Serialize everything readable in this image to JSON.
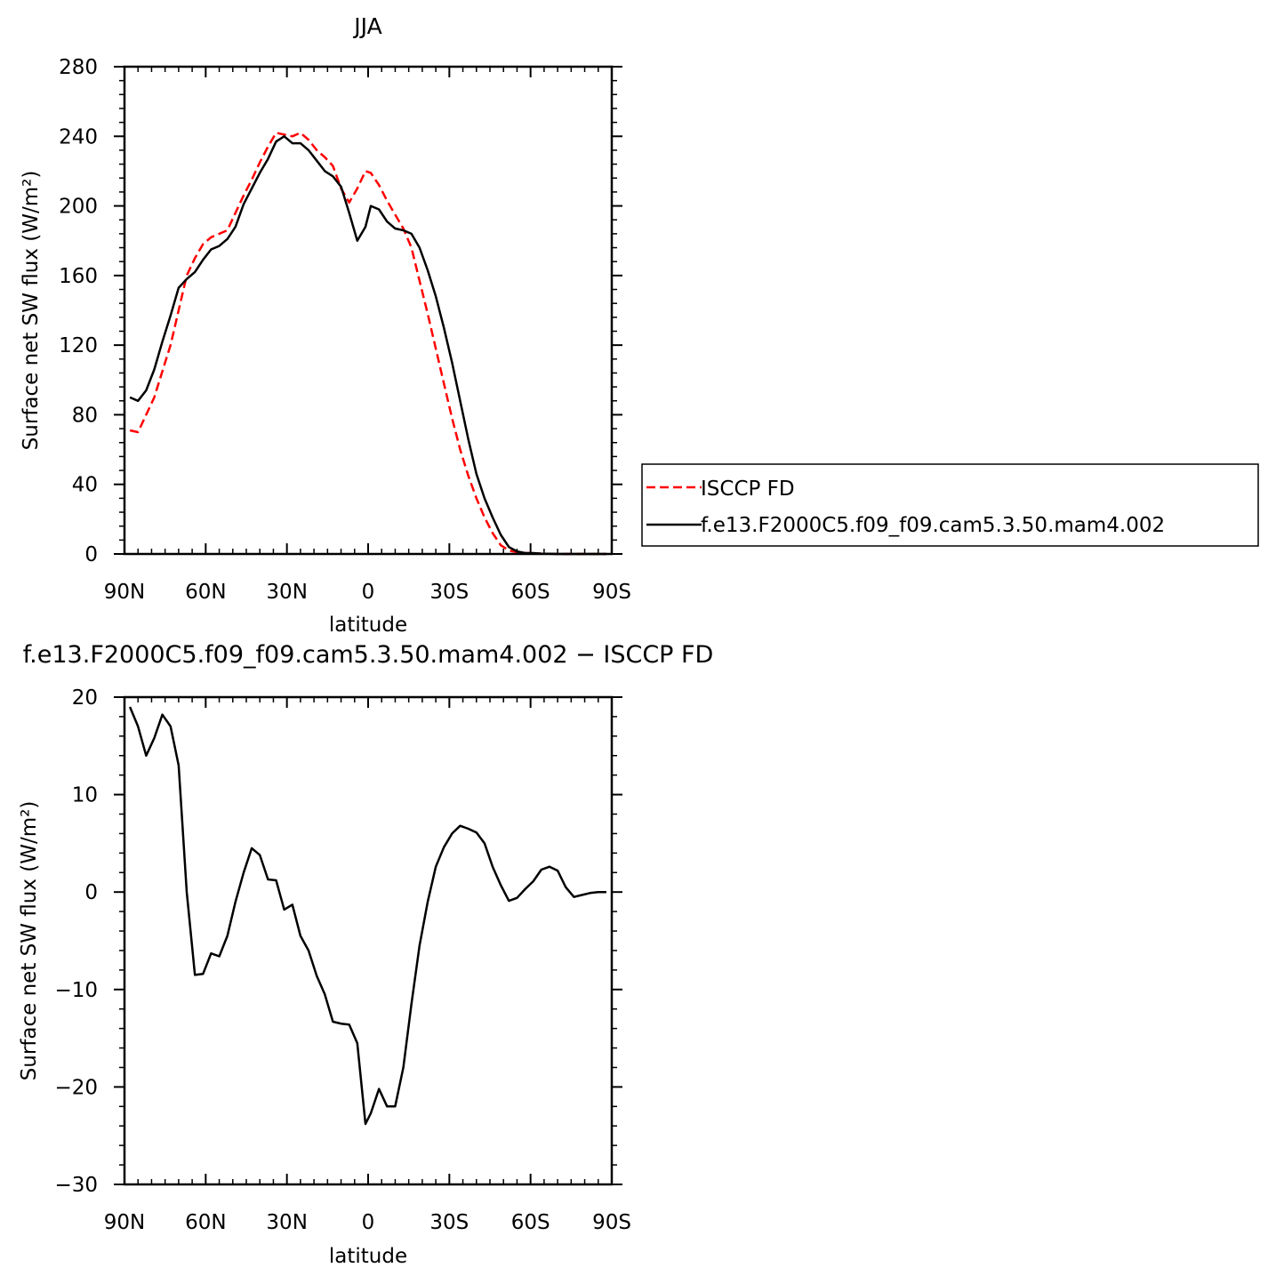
{
  "chart_data": [
    {
      "type": "line",
      "title": "JJA",
      "xlabel": "latitude",
      "ylabel": "Surface net SW flux (W/m²)",
      "xlim": [
        90,
        -90
      ],
      "ylim": [
        0,
        280
      ],
      "xticks": [
        {
          "value": 90,
          "label": "90N"
        },
        {
          "value": 60,
          "label": "60N"
        },
        {
          "value": 30,
          "label": "30N"
        },
        {
          "value": 0,
          "label": "0"
        },
        {
          "value": -30,
          "label": "30S"
        },
        {
          "value": -60,
          "label": "60S"
        },
        {
          "value": -90,
          "label": "90S"
        }
      ],
      "yticks": [
        0,
        40,
        80,
        120,
        160,
        200,
        240,
        280
      ],
      "legend": {
        "placement": "right"
      },
      "series": [
        {
          "name": "ISCCP FD",
          "color": "#ff0000",
          "dash": "dashed",
          "x": [
            88,
            85,
            82,
            79,
            76,
            73,
            70,
            67,
            64,
            61,
            58,
            55,
            52,
            49,
            46,
            43,
            40,
            37,
            34,
            31,
            28,
            25,
            22,
            19,
            16,
            13,
            10,
            7,
            4,
            1,
            -1,
            -4,
            -7,
            -10,
            -13,
            -16,
            -19,
            -22,
            -25,
            -28,
            -31,
            -34,
            -37,
            -40,
            -43,
            -46,
            -49,
            -52,
            -55,
            -58,
            -61,
            -64,
            -67,
            -70,
            -73,
            -76,
            -79,
            -82,
            -85,
            -88
          ],
          "y": [
            71,
            70,
            80,
            90,
            105,
            120,
            140,
            160,
            170,
            178,
            182,
            184,
            186,
            196,
            206,
            215,
            225,
            234,
            242,
            241,
            240,
            242,
            238,
            232,
            228,
            223,
            210,
            202,
            210,
            220,
            219,
            212,
            203,
            195,
            187,
            176,
            157,
            138,
            118,
            98,
            78,
            60,
            45,
            32,
            21,
            12,
            5,
            2,
            1,
            0.5,
            0.5,
            0.2,
            0.1,
            0,
            0,
            0,
            0,
            0,
            0,
            0
          ]
        },
        {
          "name": "f.e13.F2000C5.f09_f09.cam5.3.50.mam4.002",
          "color": "#000000",
          "dash": "solid",
          "x": [
            88,
            85,
            82,
            79,
            76,
            73,
            70,
            67,
            64,
            61,
            58,
            55,
            52,
            49,
            46,
            43,
            40,
            37,
            34,
            31,
            28,
            25,
            22,
            19,
            16,
            13,
            10,
            7,
            4,
            1,
            -1,
            -4,
            -7,
            -10,
            -13,
            -16,
            -19,
            -22,
            -25,
            -28,
            -31,
            -34,
            -37,
            -40,
            -43,
            -46,
            -49,
            -52,
            -55,
            -58,
            -61,
            -64,
            -67,
            -70,
            -73,
            -76,
            -79,
            -82,
            -85,
            -88
          ],
          "y": [
            90,
            88,
            94,
            106,
            122,
            137,
            153,
            158,
            162,
            169,
            175,
            177,
            181,
            188,
            201,
            210,
            219,
            227,
            237,
            240,
            236,
            236,
            232,
            226,
            220,
            217,
            211,
            196,
            180,
            188,
            200,
            198,
            191,
            187,
            186,
            184,
            176,
            163,
            148,
            130,
            110,
            88,
            66,
            46,
            32,
            21,
            11,
            4,
            1.5,
            0.5,
            0.5,
            0.2,
            0.1,
            0,
            0,
            0,
            0,
            0,
            0,
            0
          ]
        }
      ]
    },
    {
      "type": "line",
      "title": "f.e13.F2000C5.f09_f09.cam5.3.50.mam4.002 − ISCCP FD",
      "xlabel": "latitude",
      "ylabel": "Surface net SW flux (W/m²)",
      "xlim": [
        90,
        -90
      ],
      "ylim": [
        -30,
        20
      ],
      "xticks": [
        {
          "value": 90,
          "label": "90N"
        },
        {
          "value": 60,
          "label": "60N"
        },
        {
          "value": 30,
          "label": "30N"
        },
        {
          "value": 0,
          "label": "0"
        },
        {
          "value": -30,
          "label": "30S"
        },
        {
          "value": -60,
          "label": "60S"
        },
        {
          "value": -90,
          "label": "90S"
        }
      ],
      "yticks": [
        -30,
        -20,
        -10,
        0,
        10,
        20
      ],
      "series": [
        {
          "color": "#000000",
          "dash": "solid",
          "x": [
            88,
            85,
            82,
            79,
            76,
            73,
            70,
            67,
            64,
            61,
            58,
            55,
            52,
            49,
            46,
            43,
            40,
            37,
            34,
            31,
            28,
            25,
            22,
            19,
            16,
            13,
            10,
            7,
            4,
            1,
            -1,
            -4,
            -7,
            -10,
            -13,
            -16,
            -19,
            -22,
            -25,
            -28,
            -31,
            -34,
            -37,
            -40,
            -43,
            -46,
            -49,
            -52,
            -55,
            -58,
            -61,
            -64,
            -67,
            -70,
            -73,
            -76,
            -79,
            -82,
            -85,
            -88
          ],
          "y": [
            19,
            17,
            14,
            15.8,
            18.2,
            17,
            13,
            0,
            -8.5,
            -8.4,
            -6.3,
            -6.6,
            -4.5,
            -1,
            2,
            4.5,
            3.8,
            1.3,
            1.2,
            -1.8,
            -1.3,
            -4.5,
            -6,
            -8.6,
            -10.5,
            -13.3,
            -13.5,
            -13.6,
            -15.5,
            -23.8,
            -22.7,
            -20.2,
            -22,
            -22,
            -18,
            -11.5,
            -5.5,
            -1,
            2.6,
            4.6,
            6,
            6.8,
            6.5,
            6.1,
            5,
            2.6,
            0.7,
            -0.9,
            -0.6,
            0.3,
            1.1,
            2.3,
            2.6,
            2.2,
            0.5,
            -0.5,
            -0.3,
            -0.1,
            0,
            0
          ]
        }
      ]
    }
  ]
}
